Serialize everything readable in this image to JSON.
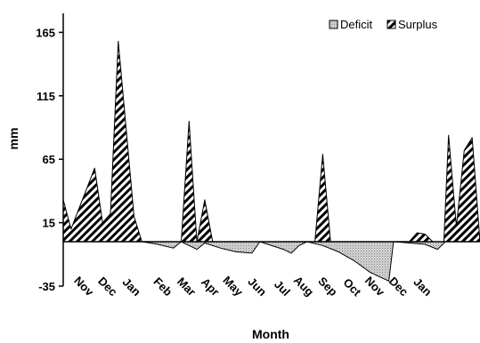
{
  "chart_data": {
    "type": "area",
    "title": "",
    "xlabel": "Month",
    "ylabel": "mm",
    "ylim": [
      -35,
      180
    ],
    "yticks": [
      165,
      115,
      65,
      15,
      -35
    ],
    "grid": false,
    "legend_position": "top-right",
    "xlim": [
      0,
      26.5
    ],
    "x_tick_labels": [
      {
        "x": 1.0,
        "label": "Nov"
      },
      {
        "x": 2.5,
        "label": "Dec"
      },
      {
        "x": 4.0,
        "label": "Jan"
      },
      {
        "x": 6.0,
        "label": "Feb"
      },
      {
        "x": 7.5,
        "label": "Mar"
      },
      {
        "x": 9.0,
        "label": "Apr"
      },
      {
        "x": 10.5,
        "label": "May"
      },
      {
        "x": 12.0,
        "label": "Jun"
      },
      {
        "x": 13.5,
        "label": "Jul"
      },
      {
        "x": 15.0,
        "label": "Aug"
      },
      {
        "x": 16.5,
        "label": "Sep"
      },
      {
        "x": 18.0,
        "label": "Oct"
      },
      {
        "x": 19.5,
        "label": "Nov"
      },
      {
        "x": 21.0,
        "label": "Dec"
      },
      {
        "x": 22.5,
        "label": "Jan"
      }
    ],
    "series": [
      {
        "name": "Deficit",
        "color": "#bbbbbb",
        "pattern": "dots",
        "points": [
          [
            5,
            0
          ],
          [
            6,
            -2
          ],
          [
            7,
            -5
          ],
          [
            7.5,
            0
          ],
          [
            8,
            -3
          ],
          [
            8.5,
            -6
          ],
          [
            9,
            -1
          ],
          [
            10,
            -5
          ],
          [
            11,
            -8
          ],
          [
            12,
            -9
          ],
          [
            12.5,
            0
          ],
          [
            13,
            -2
          ],
          [
            14,
            -6
          ],
          [
            14.5,
            -9
          ],
          [
            15,
            -3
          ],
          [
            15.5,
            0
          ],
          [
            16.5,
            -3
          ],
          [
            17.5,
            -8
          ],
          [
            18.5,
            -15
          ],
          [
            19.5,
            -24
          ],
          [
            20,
            -27
          ],
          [
            20.7,
            -31
          ],
          [
            21,
            0
          ],
          [
            23,
            -2
          ],
          [
            23.8,
            -6
          ],
          [
            24.3,
            0
          ]
        ]
      },
      {
        "name": "Surplus",
        "color": "#000000",
        "pattern": "diagonal-hatch",
        "points": [
          [
            0,
            33
          ],
          [
            0.5,
            10
          ],
          [
            2,
            58
          ],
          [
            2.5,
            15
          ],
          [
            3,
            22
          ],
          [
            3.5,
            158
          ],
          [
            4.5,
            20
          ],
          [
            5,
            0
          ],
          [
            7.5,
            0
          ],
          [
            8,
            95
          ],
          [
            8.5,
            0
          ],
          [
            9,
            33
          ],
          [
            9.5,
            0
          ],
          [
            16,
            0
          ],
          [
            16.5,
            69
          ],
          [
            17,
            0
          ],
          [
            22,
            0
          ],
          [
            22.5,
            7
          ],
          [
            23,
            6
          ],
          [
            23.5,
            0
          ],
          [
            24.2,
            0
          ],
          [
            24.5,
            84
          ],
          [
            25,
            12
          ],
          [
            25.5,
            72
          ],
          [
            26,
            82
          ],
          [
            26.5,
            0
          ]
        ]
      }
    ]
  }
}
